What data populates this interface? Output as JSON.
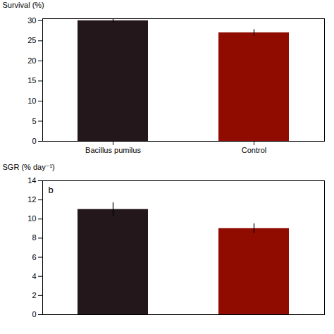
{
  "chart_data": [
    {
      "type": "bar",
      "categories": [
        "Bacillus pumilus",
        "Control"
      ],
      "values": [
        30,
        27
      ],
      "errors": [
        0.5,
        0.8
      ],
      "ylabel": "Survival (%)",
      "ylim": [
        0,
        30.5
      ],
      "yticks": [
        0,
        5,
        10,
        15,
        20,
        25,
        30
      ]
    },
    {
      "type": "bar",
      "categories": [
        null,
        null
      ],
      "values": [
        11,
        9
      ],
      "errors": [
        0.7,
        0.5
      ],
      "ylabel": "SGR (% day⁻¹)",
      "ylim": [
        0,
        14
      ],
      "yticks": [
        0,
        2,
        4,
        6,
        8,
        10,
        12,
        14
      ],
      "annotations": [
        "b"
      ]
    }
  ]
}
